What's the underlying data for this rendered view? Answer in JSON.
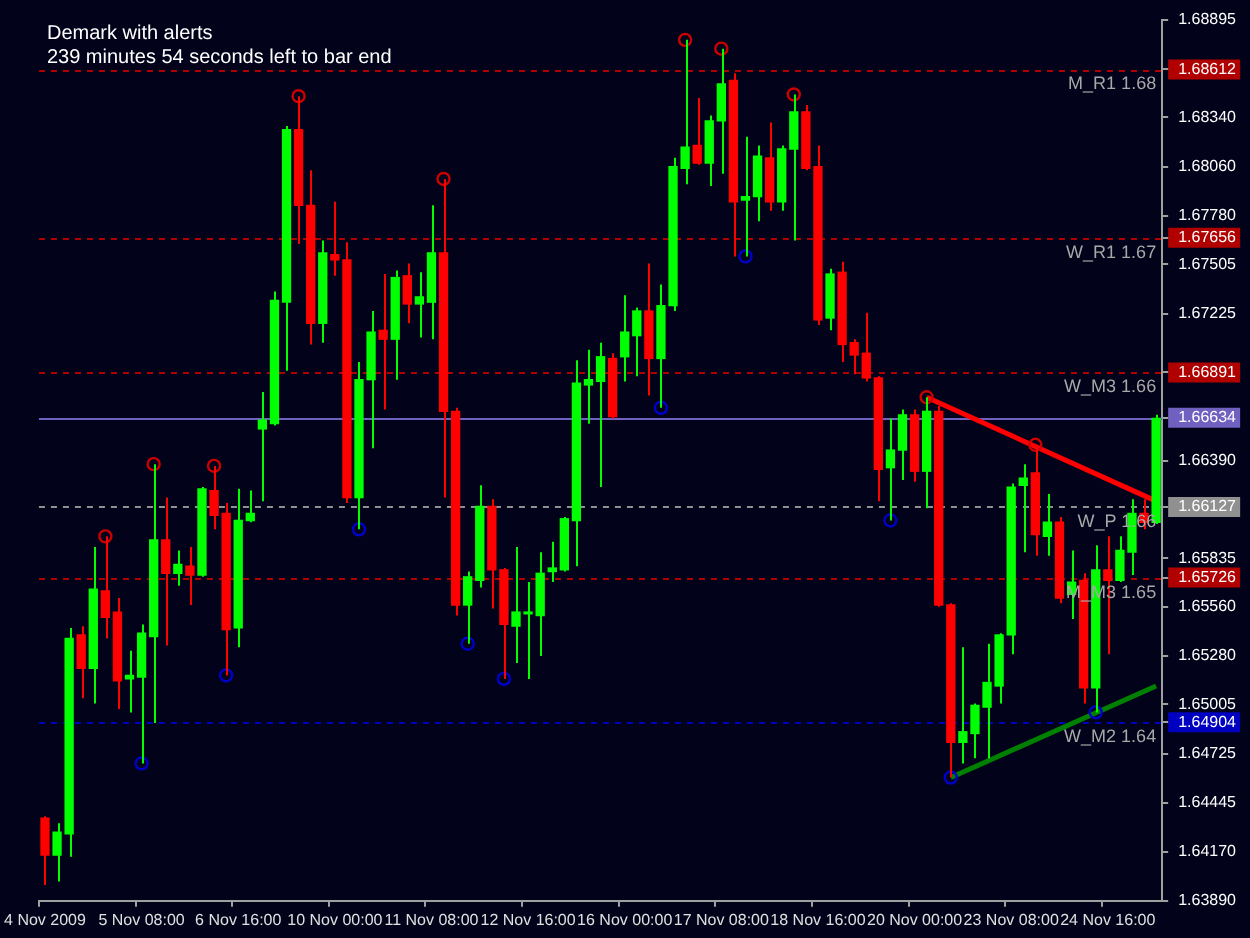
{
  "chart_data": {
    "type": "candlestick",
    "title": "Demark with alerts",
    "subtitle": "239 minutes 54 seconds left to bar end",
    "categories": [
      "4 Nov 2009",
      null,
      null,
      null,
      null,
      null,
      null,
      null,
      "5 Nov 08:00",
      null,
      null,
      null,
      null,
      null,
      null,
      null,
      "6 Nov 16:00",
      null,
      null,
      null,
      null,
      null,
      null,
      null,
      "10 Nov 00:00",
      null,
      null,
      null,
      null,
      null,
      null,
      null,
      "11 Nov 08:00",
      null,
      null,
      null,
      null,
      null,
      null,
      null,
      "12 Nov 16:00",
      null,
      null,
      null,
      null,
      null,
      null,
      null,
      "16 Nov 00:00",
      null,
      null,
      null,
      null,
      null,
      null,
      null,
      "17 Nov 08:00",
      null,
      null,
      null,
      null,
      null,
      null,
      null,
      "18 Nov 16:00",
      null,
      null,
      null,
      null,
      null,
      null,
      null,
      "20 Nov 00:00",
      null,
      null,
      null,
      null,
      null,
      null,
      null,
      "23 Nov 08:00",
      null,
      null,
      null,
      null,
      null,
      null,
      null,
      "24 Nov 16:00",
      null,
      null,
      null,
      null
    ],
    "ohlc": [
      [
        1.6436,
        1.6437,
        1.6398,
        1.6415
      ],
      [
        1.6415,
        1.6433,
        1.64,
        1.6428
      ],
      [
        1.6427,
        1.6544,
        1.6414,
        1.6538
      ],
      [
        1.654,
        1.6545,
        1.6504,
        1.6521
      ],
      [
        1.6521,
        1.659,
        1.6501,
        1.6566
      ],
      [
        1.6565,
        1.6596,
        1.6538,
        1.655
      ],
      [
        1.6553,
        1.6561,
        1.6498,
        1.6514
      ],
      [
        1.6515,
        1.6531,
        1.6496,
        1.6517
      ],
      [
        1.6516,
        1.6546,
        1.6467,
        1.6541
      ],
      [
        1.6539,
        1.6637,
        1.649,
        1.6594
      ],
      [
        1.6594,
        1.6618,
        1.6534,
        1.6575
      ],
      [
        1.6575,
        1.6588,
        1.6568,
        1.658
      ],
      [
        1.6579,
        1.659,
        1.6557,
        1.6574
      ],
      [
        1.6574,
        1.6624,
        1.6573,
        1.6623
      ],
      [
        1.6622,
        1.6636,
        1.66,
        1.6608
      ],
      [
        1.6609,
        1.6615,
        1.6517,
        1.6543
      ],
      [
        1.6544,
        1.6623,
        1.6533,
        1.6605
      ],
      [
        1.6605,
        1.6622,
        1.6604,
        1.6609
      ],
      [
        1.6657,
        1.6678,
        1.6616,
        1.6662
      ],
      [
        1.666,
        1.6735,
        1.6659,
        1.673
      ],
      [
        1.6729,
        1.6829,
        1.669,
        1.6827
      ],
      [
        1.6827,
        1.6846,
        1.6762,
        1.6784
      ],
      [
        1.6784,
        1.6804,
        1.6705,
        1.6717
      ],
      [
        1.6717,
        1.6764,
        1.6706,
        1.6757
      ],
      [
        1.6756,
        1.6786,
        1.6744,
        1.6753
      ],
      [
        1.6753,
        1.6763,
        1.6615,
        1.6618
      ],
      [
        1.6618,
        1.6695,
        1.66,
        1.6685
      ],
      [
        1.6685,
        1.6724,
        1.6646,
        1.6712
      ],
      [
        1.6713,
        1.6745,
        1.6668,
        1.6708
      ],
      [
        1.6708,
        1.6747,
        1.6685,
        1.6743
      ],
      [
        1.6744,
        1.6751,
        1.6717,
        1.6728
      ],
      [
        1.6728,
        1.6746,
        1.6709,
        1.6732
      ],
      [
        1.6729,
        1.6784,
        1.6708,
        1.6757
      ],
      [
        1.6757,
        1.6799,
        1.6618,
        1.6667
      ],
      [
        1.6667,
        1.6669,
        1.6551,
        1.6557
      ],
      [
        1.6557,
        1.6576,
        1.6535,
        1.6573
      ],
      [
        1.6571,
        1.6625,
        1.6567,
        1.6613
      ],
      [
        1.6613,
        1.6617,
        1.6555,
        1.6577
      ],
      [
        1.6577,
        1.6578,
        1.6515,
        1.6546
      ],
      [
        1.6545,
        1.659,
        1.6524,
        1.6553
      ],
      [
        1.6552,
        1.657,
        1.6515,
        1.6553
      ],
      [
        1.6551,
        1.6587,
        1.6528,
        1.6575
      ],
      [
        1.6576,
        1.6593,
        1.657,
        1.6578
      ],
      [
        1.6577,
        1.6607,
        1.6576,
        1.6606
      ],
      [
        1.6605,
        1.6696,
        1.6579,
        1.6683
      ],
      [
        1.6682,
        1.6702,
        1.666,
        1.6685
      ],
      [
        1.6684,
        1.6706,
        1.6624,
        1.6698
      ],
      [
        1.6697,
        1.67,
        1.6663,
        1.6664
      ],
      [
        1.6698,
        1.6733,
        1.6684,
        1.6712
      ],
      [
        1.671,
        1.6726,
        1.6687,
        1.6724
      ],
      [
        1.6724,
        1.6751,
        1.6676,
        1.6697
      ],
      [
        1.6697,
        1.6739,
        1.6669,
        1.6727
      ],
      [
        1.6727,
        1.6811,
        1.6724,
        1.6806
      ],
      [
        1.6805,
        1.6878,
        1.6796,
        1.6817
      ],
      [
        1.6818,
        1.6845,
        1.6807,
        1.6808
      ],
      [
        1.6808,
        1.6835,
        1.6795,
        1.6832
      ],
      [
        1.6832,
        1.6873,
        1.6802,
        1.6853
      ],
      [
        1.6855,
        1.6859,
        1.6755,
        1.6786
      ],
      [
        1.6787,
        1.6823,
        1.6755,
        1.6789
      ],
      [
        1.6789,
        1.6818,
        1.6775,
        1.6812
      ],
      [
        1.6811,
        1.6831,
        1.6781,
        1.6786
      ],
      [
        1.6786,
        1.6818,
        1.6781,
        1.6816
      ],
      [
        1.6816,
        1.6847,
        1.6764,
        1.6837
      ],
      [
        1.6837,
        1.6841,
        1.6804,
        1.6805
      ],
      [
        1.6806,
        1.6818,
        1.6716,
        1.6719
      ],
      [
        1.672,
        1.6748,
        1.6713,
        1.6745
      ],
      [
        1.6746,
        1.6752,
        1.6695,
        1.6705
      ],
      [
        1.6706,
        1.6708,
        1.6688,
        1.6699
      ],
      [
        1.67,
        1.6723,
        1.6684,
        1.6686
      ],
      [
        1.6686,
        1.6687,
        1.6616,
        1.6634
      ],
      [
        1.6635,
        1.6663,
        1.6605,
        1.6645
      ],
      [
        1.6645,
        1.6668,
        1.6628,
        1.6665
      ],
      [
        1.6665,
        1.6668,
        1.6627,
        1.6633
      ],
      [
        1.6633,
        1.6675,
        1.6612,
        1.6667
      ],
      [
        1.6667,
        1.667,
        1.6556,
        1.6557
      ],
      [
        1.6557,
        1.6558,
        1.6459,
        1.6479
      ],
      [
        1.6479,
        1.6533,
        1.6467,
        1.6485
      ],
      [
        1.6484,
        1.6501,
        1.647,
        1.65
      ],
      [
        1.6499,
        1.6535,
        1.647,
        1.6513
      ],
      [
        1.6511,
        1.6541,
        1.6501,
        1.654
      ],
      [
        1.654,
        1.6626,
        1.6529,
        1.6624
      ],
      [
        1.6625,
        1.6637,
        1.6587,
        1.6629
      ],
      [
        1.6632,
        1.6648,
        1.6585,
        1.6597
      ],
      [
        1.6596,
        1.662,
        1.6585,
        1.6604
      ],
      [
        1.6604,
        1.6607,
        1.6558,
        1.6561
      ],
      [
        1.6563,
        1.6588,
        1.6549,
        1.657
      ],
      [
        1.6571,
        1.6575,
        1.6501,
        1.651
      ],
      [
        1.651,
        1.6591,
        1.6496,
        1.6577
      ],
      [
        1.6577,
        1.6596,
        1.6529,
        1.6571
      ],
      [
        1.6571,
        1.6596,
        1.657,
        1.6588
      ],
      [
        1.6587,
        1.6617,
        1.6574,
        1.6609
      ],
      [
        1.6609,
        1.6617,
        1.66,
        1.6604
      ],
      [
        1.6604,
        1.6665,
        1.6603,
        1.6663
      ]
    ],
    "colors": [
      "#ff0000",
      "#00ff00",
      "#00ff00",
      "#ff0000",
      "#00ff00",
      "#ff0000",
      "#ff0000",
      "#00ff00",
      "#00ff00",
      "#00ff00",
      "#ff0000",
      "#00ff00",
      "#ff0000",
      "#00ff00",
      "#ff0000",
      "#ff0000",
      "#00ff00",
      "#00ff00",
      "#00ff00",
      "#00ff00",
      "#00ff00",
      "#ff0000",
      "#ff0000",
      "#00ff00",
      "#ff0000",
      "#ff0000",
      "#00ff00",
      "#00ff00",
      "#ff0000",
      "#00ff00",
      "#ff0000",
      "#00ff00",
      "#00ff00",
      "#ff0000",
      "#ff0000",
      "#00ff00",
      "#00ff00",
      "#ff0000",
      "#ff0000",
      "#00ff00",
      "#00ff00",
      "#00ff00",
      "#00ff00",
      "#00ff00",
      "#00ff00",
      "#00ff00",
      "#00ff00",
      "#ff0000",
      "#00ff00",
      "#00ff00",
      "#ff0000",
      "#00ff00",
      "#00ff00",
      "#00ff00",
      "#ff0000",
      "#00ff00",
      "#00ff00",
      "#ff0000",
      "#00ff00",
      "#00ff00",
      "#ff0000",
      "#00ff00",
      "#00ff00",
      "#ff0000",
      "#ff0000",
      "#00ff00",
      "#ff0000",
      "#ff0000",
      "#ff0000",
      "#ff0000",
      "#00ff00",
      "#00ff00",
      "#ff0000",
      "#00ff00",
      "#ff0000",
      "#ff0000",
      "#00ff00",
      "#00ff00",
      "#00ff00",
      "#00ff00",
      "#00ff00",
      "#00ff00",
      "#ff0000",
      "#00ff00",
      "#ff0000",
      "#00ff00",
      "#ff0000",
      "#00ff00",
      "#ff0000",
      "#00ff00",
      "#00ff00",
      "#ff0000",
      "#00ff00"
    ],
    "series": [
      {
        "type": "scatter",
        "marker": "circle",
        "color": "#cc0000",
        "values": [
          null,
          null,
          null,
          null,
          null,
          1.6596,
          null,
          null,
          null,
          1.6637,
          null,
          null,
          null,
          null,
          1.6636,
          null,
          null,
          null,
          null,
          null,
          null,
          1.6846,
          null,
          null,
          null,
          null,
          null,
          null,
          null,
          null,
          null,
          null,
          null,
          1.6799,
          null,
          null,
          null,
          null,
          null,
          null,
          null,
          null,
          null,
          null,
          null,
          null,
          null,
          null,
          null,
          null,
          null,
          null,
          null,
          1.6878,
          null,
          null,
          1.6873,
          null,
          null,
          null,
          null,
          null,
          1.6847,
          null,
          null,
          null,
          null,
          null,
          null,
          null,
          null,
          null,
          null,
          1.6675,
          null,
          null,
          null,
          null,
          null,
          null,
          null,
          null,
          1.6648,
          null,
          null,
          null,
          null,
          null,
          null,
          null,
          null,
          null,
          null
        ]
      },
      {
        "type": "scatter",
        "marker": "circle",
        "color": "#0000cc",
        "values": [
          null,
          null,
          null,
          null,
          null,
          null,
          null,
          null,
          1.6467,
          null,
          null,
          null,
          null,
          null,
          null,
          1.6517,
          null,
          null,
          null,
          null,
          null,
          null,
          null,
          null,
          null,
          null,
          1.66,
          null,
          null,
          null,
          null,
          null,
          null,
          null,
          null,
          1.6535,
          null,
          null,
          1.6515,
          null,
          null,
          null,
          null,
          null,
          null,
          null,
          null,
          null,
          null,
          null,
          null,
          1.6669,
          null,
          null,
          null,
          null,
          null,
          null,
          1.6755,
          null,
          null,
          null,
          null,
          null,
          null,
          null,
          null,
          null,
          null,
          null,
          1.6605,
          null,
          null,
          null,
          null,
          1.6459,
          null,
          null,
          null,
          null,
          null,
          null,
          null,
          null,
          null,
          null,
          null,
          1.6496,
          null,
          null,
          null,
          null,
          null
        ]
      },
      {
        "type": "line",
        "color": "#ff0000",
        "values": [
          null,
          null,
          null,
          null,
          null,
          null,
          null,
          null,
          null,
          null,
          null,
          null,
          null,
          null,
          null,
          null,
          null,
          null,
          null,
          null,
          null,
          null,
          null,
          null,
          null,
          null,
          null,
          null,
          null,
          null,
          null,
          null,
          null,
          null,
          null,
          null,
          null,
          null,
          null,
          null,
          null,
          null,
          null,
          null,
          null,
          null,
          null,
          null,
          null,
          null,
          null,
          null,
          null,
          null,
          null,
          null,
          null,
          null,
          null,
          null,
          null,
          null,
          null,
          null,
          null,
          null,
          null,
          null,
          null,
          null,
          null,
          null,
          null,
          1.6675,
          null,
          null,
          null,
          null,
          null,
          null,
          null,
          null,
          null,
          null,
          null,
          null,
          null,
          null,
          null,
          null,
          null,
          null,
          1.6616
        ]
      },
      {
        "type": "line",
        "color": "#008000",
        "values": [
          null,
          null,
          null,
          null,
          null,
          null,
          null,
          null,
          null,
          null,
          null,
          null,
          null,
          null,
          null,
          null,
          null,
          null,
          null,
          null,
          null,
          null,
          null,
          null,
          null,
          null,
          null,
          null,
          null,
          null,
          null,
          null,
          null,
          null,
          null,
          null,
          null,
          null,
          null,
          null,
          null,
          null,
          null,
          null,
          null,
          null,
          null,
          null,
          null,
          null,
          null,
          null,
          null,
          null,
          null,
          null,
          null,
          null,
          null,
          null,
          null,
          null,
          null,
          null,
          null,
          null,
          null,
          null,
          null,
          null,
          null,
          null,
          null,
          null,
          null,
          1.6459,
          null,
          null,
          null,
          null,
          null,
          null,
          null,
          null,
          null,
          null,
          null,
          null,
          null,
          null,
          null,
          null,
          1.6511
        ]
      }
    ],
    "ref_lines": [
      {
        "axis": "y",
        "value": 1.68612,
        "label": "M_R1 1.68",
        "color": "#b00000",
        "line_style": "dashed"
      },
      {
        "axis": "y",
        "value": 1.67656,
        "label": "W_R1 1.67",
        "color": "#b00000",
        "line_style": "dashed"
      },
      {
        "axis": "y",
        "value": 1.66891,
        "label": "W_M3 1.66",
        "color": "#b00000",
        "line_style": "dashed"
      },
      {
        "axis": "y",
        "value": 1.66634,
        "label": null,
        "color": "#7060c0",
        "line_style": "solid"
      },
      {
        "axis": "y",
        "value": 1.66127,
        "label": "W_P 1.66",
        "color": "#909090",
        "line_style": "dashed"
      },
      {
        "axis": "y",
        "value": 1.65726,
        "label": "M_M3 1.65",
        "color": "#b00000",
        "line_style": "dashed"
      },
      {
        "axis": "y",
        "value": 1.64904,
        "label": "W_M2 1.64",
        "color": "#0000c0",
        "line_style": "dashed"
      }
    ],
    "ylim": [
      1.6389,
      1.68895
    ],
    "yticks": [
      {
        "value": 1.68895,
        "label": "1.68895"
      },
      {
        "value": 1.68612,
        "label": "1.68612"
      },
      {
        "value": 1.6834,
        "label": "1.68340"
      },
      {
        "value": 1.6806,
        "label": "1.68060"
      },
      {
        "value": 1.6778,
        "label": "1.67780"
      },
      {
        "value": 1.67656,
        "label": "1.67656"
      },
      {
        "value": 1.67505,
        "label": "1.67505"
      },
      {
        "value": 1.67225,
        "label": "1.67225"
      },
      {
        "value": 1.66891,
        "label": "1.66891"
      },
      {
        "value": 1.66634,
        "label": "1.66634"
      },
      {
        "value": 1.6639,
        "label": "1.66390"
      },
      {
        "value": 1.66127,
        "label": "1.66127"
      },
      {
        "value": 1.65835,
        "label": "1.65835"
      },
      {
        "value": 1.65726,
        "label": "1.65726"
      },
      {
        "value": 1.6556,
        "label": "1.65560"
      },
      {
        "value": 1.6528,
        "label": "1.65280"
      },
      {
        "value": 1.65005,
        "label": "1.65005"
      },
      {
        "value": 1.64904,
        "label": "1.64904"
      },
      {
        "value": 1.64725,
        "label": "1.64725"
      },
      {
        "value": 1.64445,
        "label": "1.64445"
      },
      {
        "value": 1.6417,
        "label": "1.64170"
      },
      {
        "value": 1.6389,
        "label": "1.63890"
      }
    ]
  }
}
